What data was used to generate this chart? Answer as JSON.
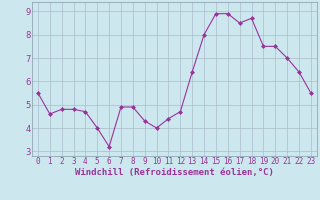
{
  "x": [
    0,
    1,
    2,
    3,
    4,
    5,
    6,
    7,
    8,
    9,
    10,
    11,
    12,
    13,
    14,
    15,
    16,
    17,
    18,
    19,
    20,
    21,
    22,
    23
  ],
  "y": [
    5.5,
    4.6,
    4.8,
    4.8,
    4.7,
    4.0,
    3.2,
    4.9,
    4.9,
    4.3,
    4.0,
    4.4,
    4.7,
    6.4,
    8.0,
    8.9,
    8.9,
    8.5,
    8.7,
    7.5,
    7.5,
    7.0,
    6.4,
    5.5
  ],
  "line_color": "#993399",
  "marker": "D",
  "marker_size": 2.0,
  "bg_color": "#cce8ee",
  "grid_color": "#aabbcc",
  "xlabel": "Windchill (Refroidissement éolien,°C)",
  "ylabel_ticks": [
    3,
    4,
    5,
    6,
    7,
    8,
    9
  ],
  "xtick_labels": [
    "0",
    "1",
    "2",
    "3",
    "4",
    "5",
    "6",
    "7",
    "8",
    "9",
    "10",
    "11",
    "12",
    "13",
    "14",
    "15",
    "16",
    "17",
    "18",
    "19",
    "20",
    "21",
    "22",
    "23"
  ],
  "xlim": [
    -0.5,
    23.5
  ],
  "ylim": [
    2.8,
    9.4
  ],
  "xlabel_color": "#993399",
  "tick_color": "#993399",
  "axis_label_fontsize": 6.5,
  "tick_fontsize": 5.5
}
